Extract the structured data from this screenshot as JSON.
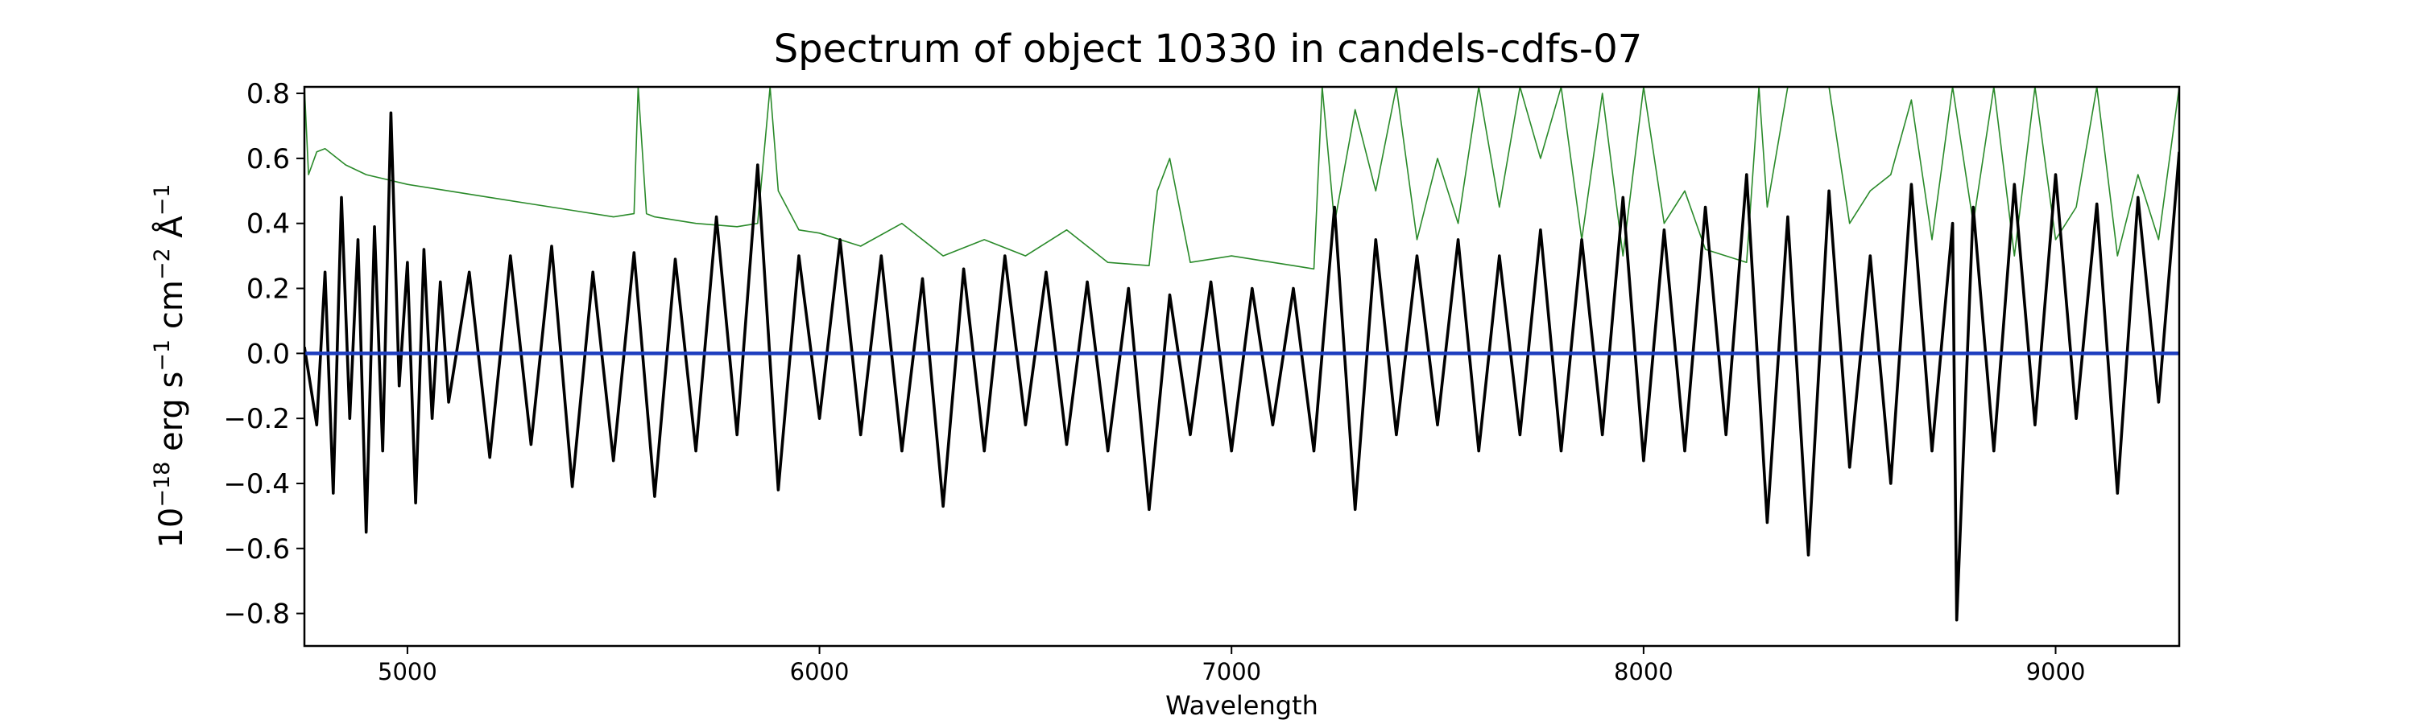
{
  "chart_data": {
    "type": "line",
    "title": "Spectrum of object 10330 in candels-cdfs-07",
    "xlabel": "Wavelength",
    "ylabel_base": "10",
    "ylabel_exp": "−18",
    "ylabel_units": " erg s",
    "ylabel_s_exp": "−1",
    "ylabel_cm": " cm",
    "ylabel_cm_exp": "−2",
    "ylabel_angstrom": " Å",
    "ylabel_angstrom_exp": "−1",
    "xlim": [
      4750,
      9300
    ],
    "ylim": [
      -0.9,
      0.82
    ],
    "xticks": [
      5000,
      6000,
      7000,
      8000,
      9000
    ],
    "xtick_labels": [
      "5000",
      "6000",
      "7000",
      "8000",
      "9000"
    ],
    "yticks": [
      -0.8,
      -0.6,
      -0.4,
      -0.2,
      0.0,
      0.2,
      0.4,
      0.6,
      0.8
    ],
    "ytick_labels": [
      "−0.8",
      "−0.6",
      "−0.4",
      "−0.2",
      "0.0",
      "0.2",
      "0.4",
      "0.6",
      "0.8"
    ],
    "grid": false,
    "series": [
      {
        "role": "flux",
        "color": "#000000",
        "x": [
          4750,
          4780,
          4800,
          4820,
          4840,
          4860,
          4880,
          4900,
          4920,
          4940,
          4960,
          4980,
          5000,
          5020,
          5040,
          5060,
          5080,
          5100,
          5150,
          5200,
          5250,
          5300,
          5350,
          5400,
          5450,
          5500,
          5550,
          5600,
          5650,
          5700,
          5750,
          5800,
          5850,
          5900,
          5950,
          6000,
          6050,
          6100,
          6150,
          6200,
          6250,
          6300,
          6350,
          6400,
          6450,
          6500,
          6550,
          6600,
          6650,
          6700,
          6750,
          6800,
          6850,
          6900,
          6950,
          7000,
          7050,
          7100,
          7150,
          7200,
          7250,
          7300,
          7350,
          7400,
          7450,
          7500,
          7550,
          7600,
          7650,
          7700,
          7750,
          7800,
          7850,
          7900,
          7950,
          8000,
          8050,
          8100,
          8150,
          8200,
          8250,
          8300,
          8350,
          8400,
          8450,
          8500,
          8550,
          8600,
          8650,
          8700,
          8750,
          8760,
          8800,
          8850,
          8900,
          8950,
          9000,
          9050,
          9100,
          9150,
          9200,
          9250,
          9300
        ],
        "y": [
          0.02,
          -0.22,
          0.25,
          -0.43,
          0.48,
          -0.2,
          0.35,
          -0.55,
          0.39,
          -0.3,
          0.74,
          -0.1,
          0.28,
          -0.46,
          0.32,
          -0.2,
          0.22,
          -0.15,
          0.25,
          -0.32,
          0.3,
          -0.28,
          0.33,
          -0.41,
          0.25,
          -0.33,
          0.31,
          -0.44,
          0.29,
          -0.3,
          0.42,
          -0.25,
          0.58,
          -0.42,
          0.3,
          -0.2,
          0.35,
          -0.25,
          0.3,
          -0.3,
          0.23,
          -0.47,
          0.26,
          -0.3,
          0.3,
          -0.22,
          0.25,
          -0.28,
          0.22,
          -0.3,
          0.2,
          -0.48,
          0.18,
          -0.25,
          0.22,
          -0.3,
          0.2,
          -0.22,
          0.2,
          -0.3,
          0.45,
          -0.48,
          0.35,
          -0.25,
          0.3,
          -0.22,
          0.35,
          -0.3,
          0.3,
          -0.25,
          0.38,
          -0.3,
          0.35,
          -0.25,
          0.48,
          -0.33,
          0.38,
          -0.3,
          0.45,
          -0.25,
          0.55,
          -0.52,
          0.42,
          -0.62,
          0.5,
          -0.35,
          0.3,
          -0.4,
          0.52,
          -0.3,
          0.4,
          -0.82,
          0.45,
          -0.3,
          0.52,
          -0.22,
          0.55,
          -0.2,
          0.46,
          -0.43,
          0.48,
          -0.15,
          0.62
        ]
      },
      {
        "role": "error",
        "color": "#2a8a2a",
        "x": [
          4750,
          4760,
          4780,
          4800,
          4850,
          4900,
          5000,
          5100,
          5200,
          5300,
          5400,
          5500,
          5550,
          5560,
          5580,
          5600,
          5700,
          5800,
          5850,
          5880,
          5900,
          5950,
          6000,
          6100,
          6200,
          6300,
          6400,
          6500,
          6600,
          6700,
          6800,
          6820,
          6850,
          6900,
          7000,
          7100,
          7150,
          7200,
          7220,
          7250,
          7300,
          7350,
          7400,
          7450,
          7500,
          7550,
          7600,
          7650,
          7700,
          7750,
          7800,
          7850,
          7900,
          7950,
          8000,
          8050,
          8100,
          8150,
          8200,
          8250,
          8280,
          8300,
          8350,
          8400,
          8450,
          8500,
          8550,
          8600,
          8650,
          8700,
          8750,
          8800,
          8850,
          8900,
          8950,
          9000,
          9050,
          9100,
          9150,
          9200,
          9250,
          9300
        ],
        "y": [
          0.82,
          0.55,
          0.62,
          0.63,
          0.58,
          0.55,
          0.52,
          0.5,
          0.48,
          0.46,
          0.44,
          0.42,
          0.43,
          0.82,
          0.43,
          0.42,
          0.4,
          0.39,
          0.4,
          0.82,
          0.5,
          0.38,
          0.37,
          0.33,
          0.4,
          0.3,
          0.35,
          0.3,
          0.38,
          0.28,
          0.27,
          0.5,
          0.6,
          0.28,
          0.3,
          0.28,
          0.27,
          0.26,
          0.82,
          0.4,
          0.75,
          0.5,
          0.82,
          0.35,
          0.6,
          0.4,
          0.82,
          0.45,
          0.82,
          0.6,
          0.82,
          0.35,
          0.8,
          0.3,
          0.82,
          0.4,
          0.5,
          0.32,
          0.3,
          0.28,
          0.82,
          0.45,
          0.82,
          0.82,
          0.82,
          0.4,
          0.5,
          0.55,
          0.78,
          0.35,
          0.82,
          0.4,
          0.82,
          0.3,
          0.82,
          0.35,
          0.45,
          0.82,
          0.3,
          0.55,
          0.35,
          0.82
        ]
      },
      {
        "role": "zero",
        "color": "#1f3fbf",
        "x": [
          4750,
          9300
        ],
        "y": [
          0.0,
          0.0
        ]
      }
    ]
  }
}
